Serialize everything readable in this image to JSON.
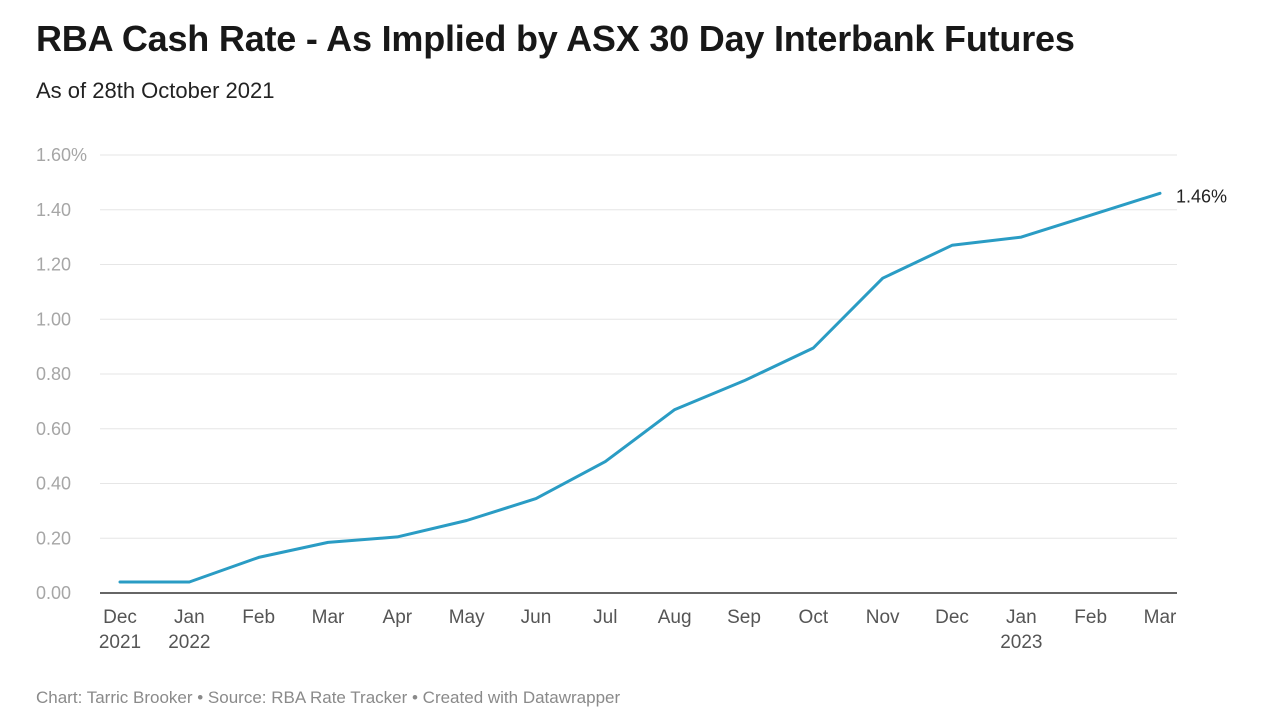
{
  "title": "RBA Cash Rate - As Implied by ASX 30 Day Interbank Futures",
  "subtitle": "As of 28th October 2021",
  "footer": "Chart: Tarric Brooker • Source: RBA Rate Tracker • Created with Datawrapper",
  "colors": {
    "line": "#2a9cc4",
    "grid": "#e6e6e6",
    "axis": "#333333"
  },
  "chart_data": {
    "type": "line",
    "categories": [
      [
        "Dec",
        "2021"
      ],
      [
        "Jan",
        "2022"
      ],
      [
        "Feb",
        ""
      ],
      [
        "Mar",
        ""
      ],
      [
        "Apr",
        ""
      ],
      [
        "May",
        ""
      ],
      [
        "Jun",
        ""
      ],
      [
        "Jul",
        ""
      ],
      [
        "Aug",
        ""
      ],
      [
        "Sep",
        ""
      ],
      [
        "Oct",
        ""
      ],
      [
        "Nov",
        ""
      ],
      [
        "Dec",
        ""
      ],
      [
        "Jan",
        "2023"
      ],
      [
        "Feb",
        ""
      ],
      [
        "Mar",
        ""
      ]
    ],
    "values": [
      0.04,
      0.04,
      0.13,
      0.185,
      0.205,
      0.265,
      0.345,
      0.48,
      0.67,
      0.775,
      0.895,
      1.15,
      1.27,
      1.3,
      1.38,
      1.46
    ],
    "ylim": [
      0,
      1.6
    ],
    "yticks": [
      {
        "value": 0,
        "label": "0.00"
      },
      {
        "value": 0.2,
        "label": "0.20"
      },
      {
        "value": 0.4,
        "label": "0.40"
      },
      {
        "value": 0.6,
        "label": "0.60"
      },
      {
        "value": 0.8,
        "label": "0.80"
      },
      {
        "value": 1.0,
        "label": "1.00"
      },
      {
        "value": 1.2,
        "label": "1.20"
      },
      {
        "value": 1.4,
        "label": "1.40"
      },
      {
        "value": 1.6,
        "label": "1.60%"
      }
    ],
    "end_label": "1.46%",
    "grid": true,
    "legend": "none"
  }
}
